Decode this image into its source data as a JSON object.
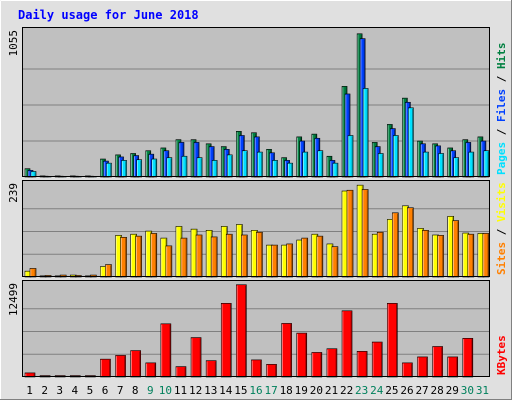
{
  "title": "Daily usage for June 2018",
  "colors": {
    "title": "#0000ff",
    "background": "#c0c0c0",
    "page_bg": "#e0e0e0",
    "hits": "#008040",
    "files": "#0040ff",
    "pages": "#00e0ff",
    "visits": "#ffff00",
    "sites": "#ff8000",
    "kbytes": "#ff0000",
    "weekday": "#000000",
    "weekend": "#00805c"
  },
  "axis_labels": {
    "top": {
      "max": "1055",
      "parts": [
        "Pages",
        "Files",
        "Hits"
      ],
      "sep": " / "
    },
    "mid": {
      "max": "239",
      "parts": [
        "Sites",
        "Visits"
      ],
      "sep": " / "
    },
    "bot": {
      "max": "12499",
      "parts": [
        "KBytes"
      ]
    }
  },
  "chart_data": {
    "type": "bar",
    "title": "Daily usage for June 2018",
    "categories": [
      "1",
      "2",
      "3",
      "4",
      "5",
      "6",
      "7",
      "8",
      "9",
      "10",
      "11",
      "12",
      "13",
      "14",
      "15",
      "16",
      "17",
      "18",
      "19",
      "20",
      "21",
      "22",
      "23",
      "24",
      "25",
      "26",
      "27",
      "28",
      "29",
      "30",
      "31"
    ],
    "weekend_days": [
      "9",
      "10",
      "16",
      "17",
      "23",
      "24",
      "30",
      "31"
    ],
    "panels": [
      {
        "name": "traffic",
        "ylim": [
          0,
          1055
        ],
        "series": [
          {
            "name": "Hits",
            "values": [
              60,
              8,
              8,
              8,
              8,
              130,
              160,
              170,
              190,
              210,
              270,
              270,
              240,
              220,
              330,
              320,
              200,
              140,
              290,
              310,
              150,
              655,
              1035,
              250,
              380,
              570,
              260,
              240,
              210,
              270,
              290
            ]
          },
          {
            "name": "Files",
            "values": [
              48,
              6,
              6,
              6,
              6,
              115,
              145,
              155,
              165,
              190,
              250,
              250,
              220,
              200,
              300,
              290,
              175,
              120,
              260,
              280,
              120,
              600,
              1000,
              220,
              350,
              540,
              240,
              225,
              190,
              250,
              260
            ]
          },
          {
            "name": "Pages",
            "values": [
              40,
              5,
              5,
              5,
              5,
              100,
              120,
              125,
              130,
              140,
              150,
              140,
              120,
              160,
              190,
              180,
              120,
              100,
              180,
              190,
              100,
              300,
              640,
              170,
              300,
              500,
              180,
              170,
              140,
              180,
              190
            ]
          }
        ]
      },
      {
        "name": "visitors",
        "ylim": [
          0,
          239
        ],
        "series": [
          {
            "name": "Visits",
            "values": [
              15,
              3,
              3,
              5,
              3,
              27,
              107,
              110,
              118,
              100,
              130,
              123,
              120,
              130,
              135,
              120,
              82,
              82,
              95,
              110,
              85,
              221,
              236,
              110,
              148,
              183,
              125,
              108,
              156,
              113,
              112
            ]
          },
          {
            "name": "Sites",
            "values": [
              22,
              4,
              5,
              4,
              5,
              32,
              102,
              105,
              112,
              80,
              100,
              108,
              103,
              110,
              108,
              115,
              82,
              85,
              100,
              105,
              78,
              223,
              225,
              115,
              165,
              178,
              120,
              107,
              145,
              110,
              112
            ]
          }
        ]
      },
      {
        "name": "volume",
        "ylim": [
          0,
          12499
        ],
        "series": [
          {
            "name": "KBytes",
            "values": [
              550,
              190,
              190,
              190,
              190,
              2400,
              2900,
              3550,
              1900,
              7150,
              1400,
              5300,
              2200,
              9900,
              12400,
              2300,
              1700,
              7200,
              5900,
              3300,
              3800,
              8900,
              3450,
              4700,
              9900,
              1900,
              2700,
              4100,
              2700,
              5200,
              0
            ]
          }
        ]
      }
    ]
  }
}
